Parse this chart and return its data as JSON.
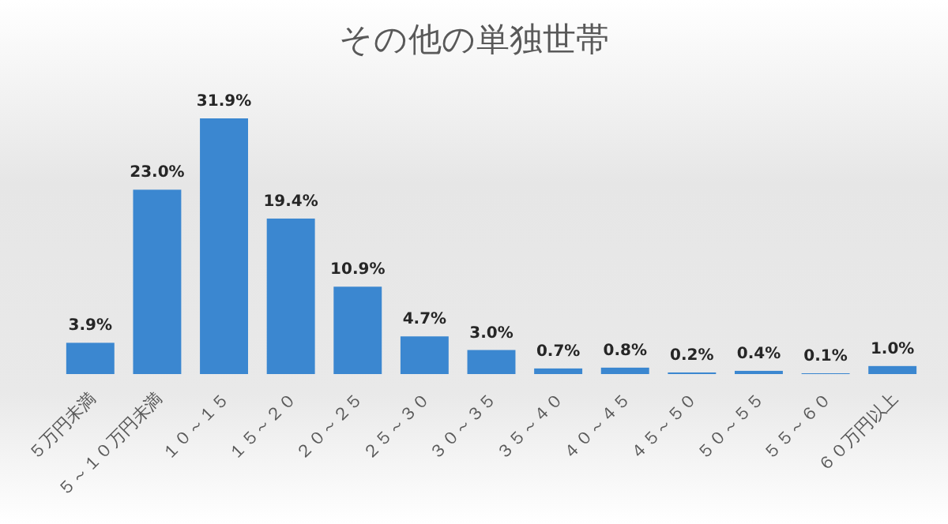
{
  "chart_data": {
    "type": "bar",
    "title": "その他の単独世帯",
    "categories": [
      "５万円未満",
      "５～１０万円未満",
      "１０～１５",
      "１５～２０",
      "２０～２５",
      "２５～３０",
      "３０～３５",
      "３５～４０",
      "４０～４５",
      "４５～５０",
      "５０～５５",
      "５５～６０",
      "６０万円以上"
    ],
    "values": [
      3.9,
      23.0,
      31.9,
      19.4,
      10.9,
      4.7,
      3.0,
      0.7,
      0.8,
      0.2,
      0.4,
      0.1,
      1.0
    ],
    "value_labels": [
      "3.9%",
      "23.0%",
      "31.9%",
      "19.4%",
      "10.9%",
      "4.7%",
      "3.0%",
      "0.7%",
      "0.8%",
      "0.2%",
      "0.4%",
      "0.1%",
      "1.0%"
    ],
    "color": "#3b87d0",
    "grid": false,
    "legend": false
  }
}
